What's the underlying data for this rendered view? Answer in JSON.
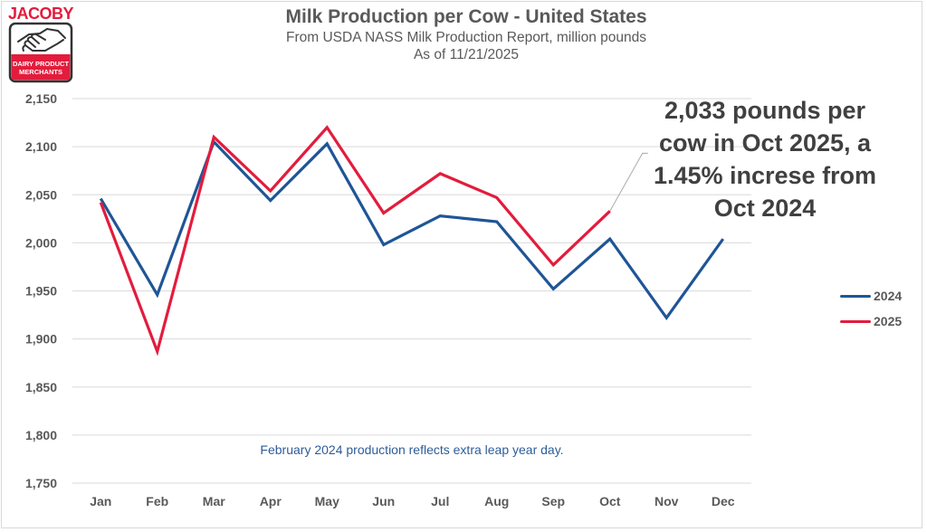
{
  "logo": {
    "brand": "JACOBY",
    "tagline_line1": "DAIRY PRODUCT",
    "tagline_line2": "MERCHANTS"
  },
  "colors": {
    "series_2024": "#1f5597",
    "series_2025": "#e31c3d",
    "gridline": "#e0e0e0",
    "text": "#595959",
    "note": "#2e5c9a",
    "logo_red": "#e31c3d"
  },
  "chart_data": {
    "type": "line",
    "title": "Milk Production per Cow - United States",
    "subtitle": "From USDA NASS Milk Production Report, million pounds",
    "date_line": "As of 11/21/2025",
    "xlabel": "",
    "ylabel": "",
    "categories": [
      "Jan",
      "Feb",
      "Mar",
      "Apr",
      "May",
      "Jun",
      "Jul",
      "Aug",
      "Sep",
      "Oct",
      "Nov",
      "Dec"
    ],
    "ylim": [
      1750,
      2150
    ],
    "yticks": [
      1750,
      1800,
      1850,
      1900,
      1950,
      2000,
      2050,
      2100,
      2150
    ],
    "ytick_labels": [
      "1,750",
      "1,800",
      "1,850",
      "1,900",
      "1,950",
      "2,000",
      "2,050",
      "2,100",
      "2,150"
    ],
    "grid": true,
    "legend_position": "right",
    "series": [
      {
        "name": "2024",
        "color": "#1f5597",
        "values": [
          2046,
          1946,
          2105,
          2044,
          2103,
          1998,
          2028,
          2022,
          1952,
          2004,
          1922,
          2004
        ]
      },
      {
        "name": "2025",
        "color": "#e31c3d",
        "values": [
          2042,
          1887,
          2110,
          2054,
          2120,
          2031,
          2072,
          2047,
          1977,
          2033,
          null,
          null
        ]
      }
    ],
    "annotations": [
      {
        "text_lines": [
          "2,033 pounds per",
          "cow in Oct 2025, a",
          "1.45% increse from",
          "Oct 2024"
        ],
        "points_to": {
          "series": "2025",
          "category": "Oct",
          "value": 2033
        }
      },
      {
        "text": "February 2024 production reflects extra leap year day."
      }
    ]
  }
}
